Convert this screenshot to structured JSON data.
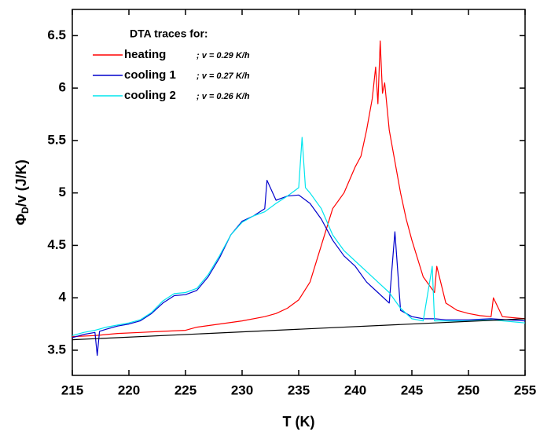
{
  "chart_data": {
    "type": "line",
    "xlabel": "T  (K)",
    "ylabel": {
      "symbol": "Φ",
      "sub": "D",
      "rest": "/v  (J/K)"
    },
    "legend_title": "DTA traces for:",
    "xlim": [
      215,
      255
    ],
    "xticks": [
      215,
      220,
      225,
      230,
      235,
      240,
      245,
      250,
      255
    ],
    "ylim": [
      3.26,
      6.75
    ],
    "yticks": [
      3.5,
      4.0,
      4.5,
      5.0,
      5.5,
      6.0,
      6.5
    ],
    "series": [
      {
        "color": "#000000",
        "x": [
          215,
          255
        ],
        "values": [
          3.6,
          3.8
        ]
      },
      {
        "name": "heating",
        "note": ";  v =  0.29 K/h",
        "color": "#ff0000",
        "x": [
          215,
          217,
          219,
          221,
          223,
          225,
          226,
          228,
          230,
          232,
          233,
          234,
          235,
          236,
          237,
          238,
          239,
          240,
          240.5,
          241,
          241.5,
          241.8,
          242,
          242.2,
          242.4,
          242.6,
          243,
          243.5,
          244,
          244.5,
          245,
          246,
          247,
          247.2,
          248,
          249,
          250,
          251,
          252,
          252.2,
          253,
          254,
          255
        ],
        "values": [
          3.63,
          3.64,
          3.66,
          3.67,
          3.68,
          3.69,
          3.72,
          3.75,
          3.78,
          3.82,
          3.85,
          3.9,
          3.98,
          4.15,
          4.5,
          4.85,
          5.0,
          5.25,
          5.35,
          5.6,
          5.9,
          6.2,
          5.85,
          6.45,
          5.95,
          6.05,
          5.6,
          5.3,
          5.0,
          4.75,
          4.55,
          4.2,
          4.05,
          4.3,
          3.95,
          3.88,
          3.85,
          3.83,
          3.82,
          4.0,
          3.82,
          3.81,
          3.8
        ]
      },
      {
        "name": "cooling 1",
        "note": ";  v =  0.27 K/h",
        "color": "#0000cc",
        "x": [
          215,
          216,
          217,
          217.2,
          217.4,
          218,
          219,
          220,
          221,
          222,
          223,
          224,
          225,
          226,
          227,
          228,
          229,
          230,
          231,
          232,
          232.2,
          233,
          234,
          235,
          236,
          237,
          238,
          239,
          240,
          241,
          242,
          243,
          243.5,
          244,
          245,
          246,
          247,
          248,
          250,
          252,
          255
        ],
        "values": [
          3.62,
          3.65,
          3.67,
          3.45,
          3.68,
          3.7,
          3.73,
          3.75,
          3.78,
          3.85,
          3.95,
          4.02,
          4.03,
          4.07,
          4.2,
          4.38,
          4.6,
          4.73,
          4.78,
          4.85,
          5.12,
          4.93,
          4.97,
          4.98,
          4.9,
          4.75,
          4.55,
          4.4,
          4.3,
          4.15,
          4.05,
          3.95,
          4.63,
          3.88,
          3.82,
          3.8,
          3.8,
          3.79,
          3.79,
          3.8,
          3.78
        ]
      },
      {
        "name": "cooling 2",
        "note": ";  v =  0.26 K/h",
        "color": "#00e5ee",
        "x": [
          215,
          216,
          217,
          218,
          219,
          220,
          221,
          222,
          223,
          224,
          225,
          226,
          227,
          228,
          229,
          230,
          231,
          232,
          233,
          234,
          235,
          235.3,
          235.6,
          236,
          237,
          238,
          239,
          240,
          241,
          242,
          243,
          244,
          245,
          246,
          246.8,
          247,
          248,
          250,
          252,
          255
        ],
        "values": [
          3.64,
          3.67,
          3.69,
          3.72,
          3.74,
          3.76,
          3.79,
          3.86,
          3.97,
          4.04,
          4.05,
          4.09,
          4.22,
          4.4,
          4.6,
          4.72,
          4.78,
          4.82,
          4.9,
          4.97,
          5.05,
          5.53,
          5.05,
          5.0,
          4.85,
          4.6,
          4.45,
          4.35,
          4.25,
          4.15,
          4.05,
          3.9,
          3.8,
          3.78,
          4.3,
          3.78,
          3.78,
          3.78,
          3.79,
          3.76
        ]
      }
    ]
  }
}
